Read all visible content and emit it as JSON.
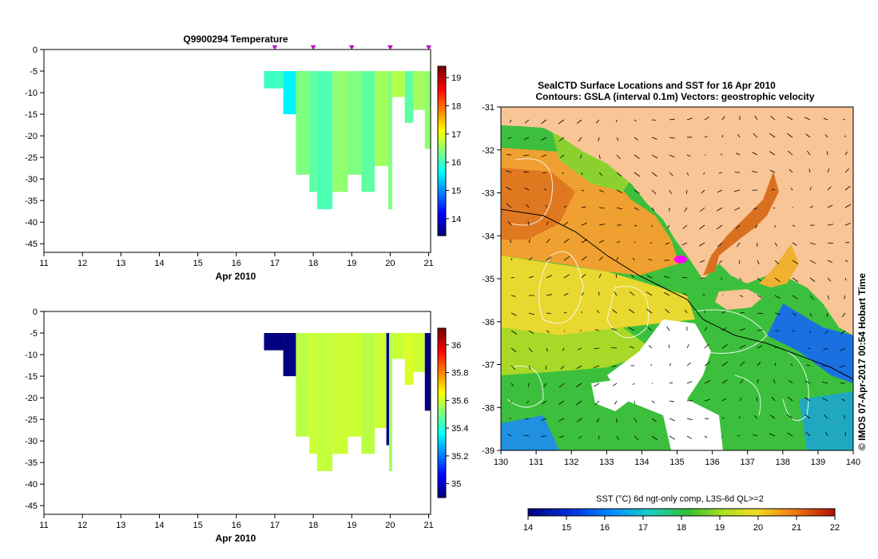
{
  "chart_data": [
    {
      "type": "heatmap",
      "name": "temperature-section",
      "title": "Q9900294  Temperature",
      "xlabel": "Apr 2010",
      "x_ticks": [
        "11",
        "12",
        "13",
        "14",
        "15",
        "16",
        "17",
        "18",
        "19",
        "20",
        "21"
      ],
      "xlim": [
        11,
        21.05
      ],
      "y_ticks": [
        "0",
        "-5",
        "-10",
        "-15",
        "-20",
        "-25",
        "-30",
        "-35",
        "-40",
        "-45"
      ],
      "ylim": [
        -47,
        0
      ],
      "colorbar": {
        "min": 13.4,
        "max": 19.4,
        "ticks": [
          "14",
          "15",
          "16",
          "17",
          "18",
          "19"
        ]
      },
      "profile_markers": [
        17,
        18,
        19,
        20,
        21
      ],
      "profiles": [
        {
          "x0": 16.72,
          "x1": 17.22,
          "depth": -9,
          "value": 16.0
        },
        {
          "x0": 17.22,
          "x1": 17.55,
          "depth": -15,
          "value": 15.6
        },
        {
          "x0": 17.55,
          "x1": 17.9,
          "depth": -29,
          "value": 16.4
        },
        {
          "x0": 17.9,
          "x1": 18.1,
          "depth": -33,
          "value": 16.2
        },
        {
          "x0": 18.1,
          "x1": 18.5,
          "depth": -37,
          "value": 16.1
        },
        {
          "x0": 18.5,
          "x1": 18.9,
          "depth": -33,
          "value": 16.5
        },
        {
          "x0": 18.9,
          "x1": 19.25,
          "depth": -29,
          "value": 16.4
        },
        {
          "x0": 19.25,
          "x1": 19.6,
          "depth": -33,
          "value": 16.2
        },
        {
          "x0": 19.6,
          "x1": 19.95,
          "depth": -27,
          "value": 16.6
        },
        {
          "x0": 19.95,
          "x1": 20.05,
          "depth": -37,
          "value": 16.4
        },
        {
          "x0": 20.05,
          "x1": 20.38,
          "depth": -11,
          "value": 16.7
        },
        {
          "x0": 20.38,
          "x1": 20.6,
          "depth": -17,
          "value": 16.2
        },
        {
          "x0": 20.6,
          "x1": 20.9,
          "depth": -14,
          "value": 16.6
        },
        {
          "x0": 20.9,
          "x1": 21.05,
          "depth": -23,
          "value": 16.5
        }
      ]
    },
    {
      "type": "heatmap",
      "name": "salinity-section",
      "title": "",
      "xlabel": "Apr 2010",
      "x_ticks": [
        "11",
        "12",
        "13",
        "14",
        "15",
        "16",
        "17",
        "18",
        "19",
        "20",
        "21"
      ],
      "xlim": [
        11,
        21.05
      ],
      "y_ticks": [
        "0",
        "-5",
        "-10",
        "-15",
        "-20",
        "-25",
        "-30",
        "-35",
        "-40",
        "-45"
      ],
      "ylim": [
        -47,
        0
      ],
      "colorbar": {
        "min": 34.9,
        "max": 36.12,
        "ticks": [
          "35",
          "35.2",
          "35.4",
          "35.6",
          "35.8",
          "36"
        ]
      },
      "profiles": [
        {
          "x0": 16.72,
          "x1": 17.22,
          "depth": -9,
          "value": 34.9
        },
        {
          "x0": 17.22,
          "x1": 17.55,
          "depth": -15,
          "value": 34.9
        },
        {
          "x0": 17.55,
          "x1": 17.9,
          "depth": -29,
          "value": 35.58
        },
        {
          "x0": 17.9,
          "x1": 18.1,
          "depth": -33,
          "value": 35.6
        },
        {
          "x0": 18.1,
          "x1": 18.5,
          "depth": -37,
          "value": 35.59
        },
        {
          "x0": 18.5,
          "x1": 18.9,
          "depth": -33,
          "value": 35.6
        },
        {
          "x0": 18.9,
          "x1": 19.25,
          "depth": -29,
          "value": 35.6
        },
        {
          "x0": 19.25,
          "x1": 19.6,
          "depth": -33,
          "value": 35.58
        },
        {
          "x0": 19.6,
          "x1": 19.9,
          "depth": -27,
          "value": 35.6
        },
        {
          "x0": 19.9,
          "x1": 19.97,
          "depth": -31,
          "value": 34.9
        },
        {
          "x0": 19.97,
          "x1": 20.05,
          "depth": -37,
          "value": 35.55
        },
        {
          "x0": 20.05,
          "x1": 20.38,
          "depth": -11,
          "value": 35.6
        },
        {
          "x0": 20.38,
          "x1": 20.6,
          "depth": -17,
          "value": 35.62
        },
        {
          "x0": 20.6,
          "x1": 20.9,
          "depth": -14,
          "value": 35.6
        },
        {
          "x0": 20.9,
          "x1": 21.05,
          "depth": -23,
          "value": 34.9
        }
      ]
    },
    {
      "type": "heatmap",
      "name": "sst-map",
      "title": "SealCTD Surface Locations and SST for 16 Apr 2010",
      "subtitle": "Contours: GSLA (interval 0.1m) Vectors: geostrophic velocity",
      "xlim": [
        130,
        140
      ],
      "ylim": [
        -39,
        -31
      ],
      "x_ticks": [
        "130",
        "131",
        "132",
        "133",
        "134",
        "135",
        "136",
        "137",
        "138",
        "139",
        "140"
      ],
      "y_ticks": [
        "-31",
        "-32",
        "-33",
        "-34",
        "-35",
        "-36",
        "-37",
        "-38",
        "-39"
      ],
      "credit": "© IMOS 07-Apr-2017 00:54 Hobart Time",
      "sealctd_location": {
        "lon": 135.1,
        "lat": -34.55
      },
      "colorbar": {
        "label": "SST (°C) 6d ngt-only comp, L3S-6d QL>=2",
        "min": 14,
        "max": 22,
        "ticks": [
          "14",
          "15",
          "16",
          "17",
          "18",
          "19",
          "20",
          "21",
          "22"
        ]
      }
    }
  ],
  "colors": {
    "land": "#f9c596",
    "no_data": "#ffffff",
    "seal_marker": "#ff00ff"
  }
}
